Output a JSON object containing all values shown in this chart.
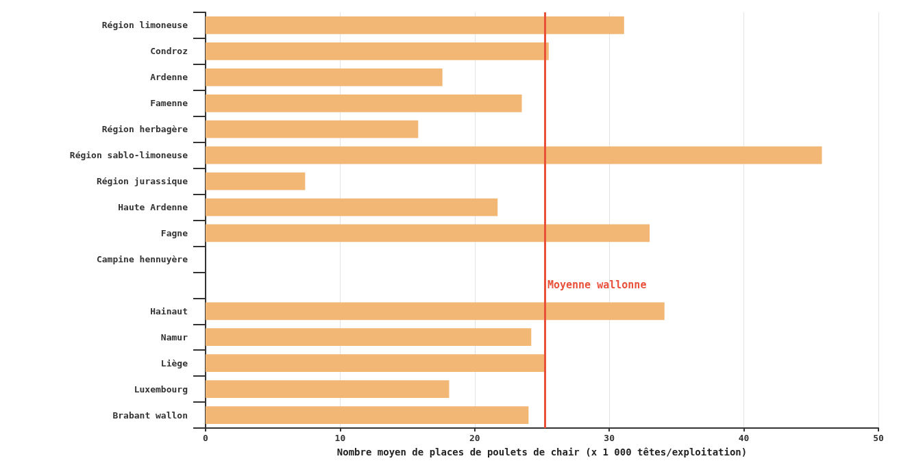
{
  "chart_data": {
    "type": "bar",
    "orientation": "horizontal",
    "categories": [
      "Région limoneuse",
      "Condroz",
      "Ardenne",
      "Famenne",
      "Région herbagère",
      "Région sablo-limoneuse",
      "Région jurassique",
      "Haute Ardenne",
      "Fagne",
      "Campine hennuyère",
      null,
      "Hainaut",
      "Namur",
      "Liège",
      "Luxembourg",
      "Brabant wallon"
    ],
    "values": [
      31.1,
      25.5,
      17.6,
      23.5,
      15.8,
      45.8,
      7.4,
      21.7,
      33.0,
      null,
      null,
      34.1,
      24.2,
      25.2,
      18.1,
      24.0
    ],
    "color": "#f2b675",
    "xlabel": "Nombre moyen de places de poulets de chair (x 1 000 têtes/exploitation)",
    "xlim": [
      0,
      50
    ],
    "xticks": [
      0,
      10,
      20,
      30,
      40,
      50
    ],
    "grid": "x",
    "ref_lines": [
      {
        "axis": "x",
        "value": 25.2,
        "label": "Moyenne wallonne",
        "color": "#e8503a"
      }
    ]
  }
}
